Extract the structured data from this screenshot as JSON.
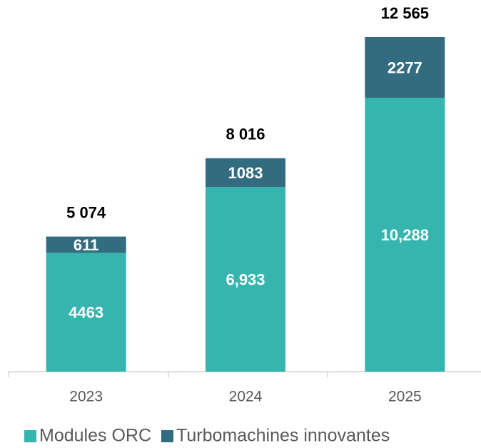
{
  "chart_data": {
    "type": "stacked_bar",
    "categories": [
      "2023",
      "2024",
      "2025"
    ],
    "series": [
      {
        "name": "Modules ORC",
        "color": "#36b5ae",
        "values": [
          4463,
          6933,
          10288
        ],
        "value_labels": [
          "4463",
          "6,933",
          "10,288"
        ]
      },
      {
        "name": "Turbomachines innovantes",
        "color": "#336b80",
        "values": [
          611,
          1083,
          2277
        ],
        "value_labels": [
          "611",
          "1083",
          "2277"
        ]
      }
    ],
    "totals": [
      5074,
      8016,
      12565
    ],
    "total_labels": [
      "5 074",
      "8 016",
      "12 565"
    ]
  }
}
